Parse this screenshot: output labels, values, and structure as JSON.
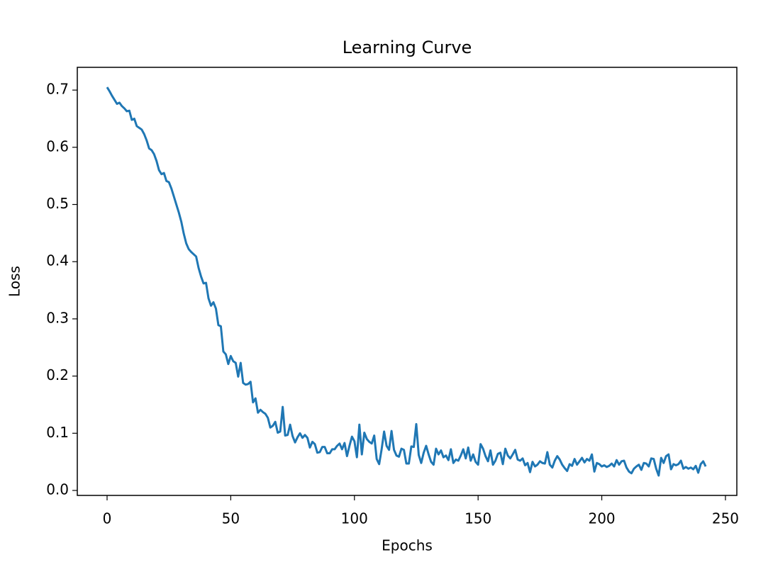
{
  "chart_data": {
    "type": "line",
    "title": "Learning Curve",
    "x_label": "Epochs",
    "y_label": "Loss",
    "color": "#1f77b4",
    "x": [
      0,
      1,
      2,
      3,
      4,
      5,
      6,
      7,
      8,
      9,
      10,
      11,
      12,
      13,
      14,
      15,
      16,
      17,
      18,
      19,
      20,
      21,
      22,
      23,
      24,
      25,
      26,
      27,
      28,
      29,
      30,
      31,
      32,
      33,
      34,
      35,
      36,
      37,
      38,
      39,
      40,
      41,
      42,
      43,
      44,
      45,
      46,
      47,
      48,
      49,
      50,
      51,
      52,
      53,
      54,
      55,
      56,
      57,
      58,
      59,
      60,
      61,
      62,
      63,
      64,
      65,
      66,
      67,
      68,
      69,
      70,
      71,
      72,
      73,
      74,
      75,
      76,
      77,
      78,
      79,
      80,
      81,
      82,
      83,
      84,
      85,
      86,
      87,
      88,
      89,
      90,
      91,
      92,
      93,
      94,
      95,
      96,
      97,
      98,
      99,
      100,
      101,
      102,
      103,
      104,
      105,
      106,
      107,
      108,
      109,
      110,
      111,
      112,
      113,
      114,
      115,
      116,
      117,
      118,
      119,
      120,
      121,
      122,
      123,
      124,
      125,
      126,
      127,
      128,
      129,
      130,
      131,
      132,
      133,
      134,
      135,
      136,
      137,
      138,
      139,
      140,
      141,
      142,
      143,
      144,
      145,
      146,
      147,
      148,
      149,
      150,
      151,
      152,
      153,
      154,
      155,
      156,
      157,
      158,
      159,
      160,
      161,
      162,
      163,
      164,
      165,
      166,
      167,
      168,
      169,
      170,
      171,
      172,
      173,
      174,
      175,
      176,
      177,
      178,
      179,
      180,
      181,
      182,
      183,
      184,
      185,
      186,
      187,
      188,
      189,
      190,
      191,
      192,
      193,
      194,
      195,
      196,
      197,
      198,
      199,
      200,
      201,
      202,
      203,
      204,
      205,
      206,
      207,
      208,
      209,
      210,
      211,
      212,
      213,
      214,
      215,
      216,
      217,
      218,
      219,
      220,
      221,
      222,
      223,
      224,
      225,
      226,
      227,
      228,
      229,
      230,
      231,
      232,
      233,
      234,
      235,
      236,
      237,
      238,
      239,
      240,
      241,
      242
    ],
    "values": [
      0.705,
      0.698,
      0.69,
      0.683,
      0.676,
      0.678,
      0.672,
      0.668,
      0.663,
      0.664,
      0.648,
      0.65,
      0.637,
      0.634,
      0.631,
      0.623,
      0.612,
      0.598,
      0.595,
      0.588,
      0.576,
      0.56,
      0.553,
      0.555,
      0.541,
      0.539,
      0.528,
      0.514,
      0.5,
      0.486,
      0.47,
      0.449,
      0.432,
      0.422,
      0.417,
      0.413,
      0.409,
      0.389,
      0.374,
      0.362,
      0.363,
      0.336,
      0.323,
      0.329,
      0.318,
      0.289,
      0.287,
      0.243,
      0.238,
      0.221,
      0.235,
      0.226,
      0.223,
      0.199,
      0.223,
      0.188,
      0.185,
      0.186,
      0.19,
      0.154,
      0.161,
      0.136,
      0.141,
      0.137,
      0.134,
      0.127,
      0.11,
      0.113,
      0.12,
      0.101,
      0.103,
      0.146,
      0.096,
      0.097,
      0.115,
      0.095,
      0.084,
      0.093,
      0.1,
      0.092,
      0.097,
      0.092,
      0.075,
      0.085,
      0.081,
      0.066,
      0.067,
      0.076,
      0.076,
      0.065,
      0.065,
      0.072,
      0.072,
      0.078,
      0.082,
      0.072,
      0.083,
      0.06,
      0.078,
      0.094,
      0.086,
      0.058,
      0.115,
      0.063,
      0.101,
      0.09,
      0.085,
      0.082,
      0.096,
      0.055,
      0.046,
      0.072,
      0.103,
      0.078,
      0.071,
      0.104,
      0.071,
      0.061,
      0.059,
      0.073,
      0.071,
      0.047,
      0.047,
      0.077,
      0.076,
      0.116,
      0.062,
      0.048,
      0.066,
      0.078,
      0.063,
      0.05,
      0.045,
      0.073,
      0.063,
      0.07,
      0.058,
      0.061,
      0.053,
      0.072,
      0.048,
      0.054,
      0.052,
      0.061,
      0.072,
      0.056,
      0.075,
      0.052,
      0.063,
      0.05,
      0.045,
      0.081,
      0.073,
      0.06,
      0.051,
      0.07,
      0.045,
      0.052,
      0.064,
      0.066,
      0.046,
      0.073,
      0.061,
      0.056,
      0.063,
      0.071,
      0.054,
      0.052,
      0.056,
      0.044,
      0.048,
      0.032,
      0.05,
      0.042,
      0.045,
      0.051,
      0.048,
      0.047,
      0.067,
      0.045,
      0.04,
      0.052,
      0.06,
      0.054,
      0.045,
      0.039,
      0.034,
      0.046,
      0.043,
      0.055,
      0.045,
      0.051,
      0.057,
      0.049,
      0.055,
      0.052,
      0.063,
      0.033,
      0.048,
      0.046,
      0.042,
      0.044,
      0.041,
      0.043,
      0.047,
      0.042,
      0.053,
      0.045,
      0.051,
      0.052,
      0.04,
      0.033,
      0.03,
      0.038,
      0.042,
      0.045,
      0.036,
      0.048,
      0.047,
      0.042,
      0.056,
      0.055,
      0.038,
      0.026,
      0.057,
      0.048,
      0.06,
      0.063,
      0.037,
      0.046,
      0.044,
      0.046,
      0.052,
      0.038,
      0.041,
      0.038,
      0.04,
      0.037,
      0.043,
      0.031,
      0.046,
      0.051,
      0.042
    ],
    "xlim": [
      -12.04,
      254.6
    ],
    "xticks": [
      0,
      50,
      100,
      150,
      200,
      250
    ],
    "ylim": [
      -0.0087,
      0.7398
    ],
    "yticks": [
      {
        "value": 0,
        "label": "0.0"
      },
      0.1,
      0.2,
      0.3,
      0.4,
      0.5,
      0.6,
      0.7
    ]
  }
}
